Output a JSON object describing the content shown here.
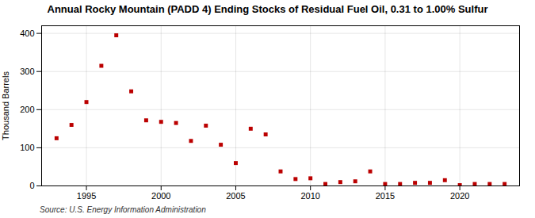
{
  "chart_data": {
    "type": "scatter",
    "title": "Annual Rocky Mountain (PADD 4) Ending Stocks of Residual Fuel Oil, 0.31 to 1.00% Sulfur",
    "ylabel": "Thousand Barrels",
    "annotations": [
      "Source: U.S. Energy Information Administration"
    ],
    "x": [
      1993,
      1994,
      1995,
      1996,
      1997,
      1998,
      1999,
      2000,
      2001,
      2002,
      2003,
      2004,
      2005,
      2006,
      2007,
      2008,
      2009,
      2010,
      2011,
      2012,
      2013,
      2014,
      2015,
      2016,
      2017,
      2018,
      2019,
      2020,
      2021,
      2022,
      2023
    ],
    "values": [
      125,
      160,
      220,
      315,
      395,
      248,
      172,
      168,
      165,
      118,
      158,
      108,
      60,
      150,
      135,
      38,
      18,
      20,
      5,
      10,
      12,
      38,
      5,
      5,
      8,
      8,
      15,
      2,
      5,
      5,
      5
    ],
    "color": "#bb0000",
    "marker": "square",
    "xlim": [
      1992,
      2024
    ],
    "ylim": [
      0,
      420
    ],
    "xticks": [
      1995,
      2000,
      2005,
      2010,
      2015,
      2020
    ],
    "yticks": [
      0,
      100,
      200,
      300,
      400
    ],
    "grid": true
  }
}
